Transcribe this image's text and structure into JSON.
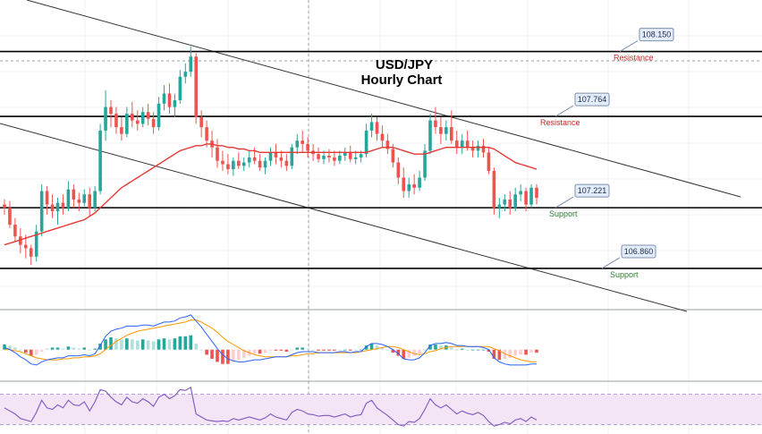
{
  "chart_data": {
    "type": "candlestick",
    "title": [
      "USD/JPY",
      "Hourly Chart"
    ],
    "ylim": [
      106.7,
      108.35
    ],
    "colors": {
      "up": "#26a69a",
      "down": "#ef5350",
      "ma": "#e53935",
      "levels": "#000000",
      "channel": "#333333",
      "resistance_text": "#c62828",
      "support_text": "#2e7d32",
      "callout_fill": "#e3ecfa",
      "callout_stroke": "#7f8fb0",
      "macd": "#2962ff",
      "signal": "#ff9800",
      "rsi": "#7e57c2",
      "rsi_band": "#f3e5f5"
    },
    "levels": [
      {
        "value": 108.15,
        "label": "108.150",
        "role": "Resistance"
      },
      {
        "value": 107.764,
        "label": "107.764",
        "role": "Resistance"
      },
      {
        "value": 107.221,
        "label": "107.221",
        "role": "Support"
      },
      {
        "value": 106.86,
        "label": "106.860",
        "role": "Support"
      }
    ],
    "candles": [
      [
        107.24,
        107.27,
        107.18,
        107.22
      ],
      [
        107.22,
        107.26,
        107.1,
        107.12
      ],
      [
        107.12,
        107.16,
        107.02,
        107.05
      ],
      [
        107.05,
        107.1,
        106.95,
        107.0
      ],
      [
        107.0,
        107.06,
        106.92,
        106.98
      ],
      [
        106.98,
        107.0,
        106.88,
        106.93
      ],
      [
        106.93,
        107.12,
        106.9,
        107.08
      ],
      [
        107.08,
        107.36,
        107.05,
        107.32
      ],
      [
        107.32,
        107.35,
        107.18,
        107.24
      ],
      [
        107.24,
        107.3,
        107.16,
        107.2
      ],
      [
        107.2,
        107.28,
        107.12,
        107.25
      ],
      [
        107.25,
        107.3,
        107.18,
        107.22
      ],
      [
        107.22,
        107.38,
        107.2,
        107.33
      ],
      [
        107.33,
        107.36,
        107.22,
        107.27
      ],
      [
        107.27,
        107.31,
        107.2,
        107.25
      ],
      [
        107.25,
        107.33,
        107.23,
        107.3
      ],
      [
        107.3,
        107.34,
        107.17,
        107.22
      ],
      [
        107.22,
        107.35,
        107.2,
        107.32
      ],
      [
        107.32,
        107.72,
        107.3,
        107.68
      ],
      [
        107.68,
        107.92,
        107.62,
        107.82
      ],
      [
        107.82,
        107.86,
        107.7,
        107.78
      ],
      [
        107.78,
        107.82,
        107.66,
        107.7
      ],
      [
        107.7,
        107.76,
        107.62,
        107.66
      ],
      [
        107.66,
        107.82,
        107.64,
        107.78
      ],
      [
        107.78,
        107.85,
        107.7,
        107.74
      ],
      [
        107.74,
        107.8,
        107.68,
        107.72
      ],
      [
        107.72,
        107.82,
        107.7,
        107.79
      ],
      [
        107.79,
        107.84,
        107.71,
        107.75
      ],
      [
        107.75,
        107.79,
        107.66,
        107.7
      ],
      [
        107.7,
        107.88,
        107.68,
        107.84
      ],
      [
        107.84,
        107.95,
        107.8,
        107.9
      ],
      [
        107.9,
        107.96,
        107.78,
        107.82
      ],
      [
        107.82,
        107.9,
        107.76,
        107.86
      ],
      [
        107.86,
        108.04,
        107.84,
        108.0
      ],
      [
        108.0,
        108.08,
        107.96,
        108.03
      ],
      [
        108.03,
        108.18,
        108.0,
        108.12
      ],
      [
        108.12,
        108.14,
        107.72,
        107.76
      ],
      [
        107.76,
        107.8,
        107.64,
        107.7
      ],
      [
        107.7,
        107.74,
        107.58,
        107.62
      ],
      [
        107.62,
        107.68,
        107.52,
        107.58
      ],
      [
        107.58,
        107.63,
        107.46,
        107.5
      ],
      [
        107.5,
        107.56,
        107.44,
        107.48
      ],
      [
        107.48,
        107.54,
        107.42,
        107.45
      ],
      [
        107.45,
        107.52,
        107.41,
        107.5
      ],
      [
        107.5,
        107.55,
        107.45,
        107.47
      ],
      [
        107.47,
        107.52,
        107.44,
        107.49
      ],
      [
        107.49,
        107.56,
        107.46,
        107.52
      ],
      [
        107.52,
        107.58,
        107.48,
        107.5
      ],
      [
        107.5,
        107.54,
        107.44,
        107.46
      ],
      [
        107.46,
        107.52,
        107.42,
        107.5
      ],
      [
        107.5,
        107.58,
        107.47,
        107.55
      ],
      [
        107.55,
        107.6,
        107.48,
        107.52
      ],
      [
        107.52,
        107.56,
        107.46,
        107.5
      ],
      [
        107.5,
        107.54,
        107.44,
        107.47
      ],
      [
        107.47,
        107.6,
        107.45,
        107.58
      ],
      [
        107.58,
        107.66,
        107.54,
        107.62
      ],
      [
        107.62,
        107.68,
        107.55,
        107.6
      ],
      [
        107.6,
        107.64,
        107.52,
        107.56
      ],
      [
        107.56,
        107.6,
        107.5,
        107.54
      ],
      [
        107.54,
        107.58,
        107.49,
        107.51
      ],
      [
        107.51,
        107.56,
        107.48,
        107.53
      ],
      [
        107.53,
        107.57,
        107.49,
        107.52
      ],
      [
        107.52,
        107.56,
        107.47,
        107.5
      ],
      [
        107.5,
        107.56,
        107.48,
        107.53
      ],
      [
        107.53,
        107.58,
        107.5,
        107.55
      ],
      [
        107.55,
        107.59,
        107.49,
        107.51
      ],
      [
        107.51,
        107.56,
        107.48,
        107.52
      ],
      [
        107.52,
        107.56,
        107.49,
        107.54
      ],
      [
        107.54,
        107.72,
        107.52,
        107.68
      ],
      [
        107.68,
        107.78,
        107.64,
        107.73
      ],
      [
        107.73,
        107.76,
        107.62,
        107.66
      ],
      [
        107.66,
        107.71,
        107.58,
        107.62
      ],
      [
        107.62,
        107.66,
        107.54,
        107.57
      ],
      [
        107.57,
        107.6,
        107.46,
        107.49
      ],
      [
        107.49,
        107.52,
        107.36,
        107.4
      ],
      [
        107.4,
        107.46,
        107.28,
        107.32
      ],
      [
        107.32,
        107.4,
        107.28,
        107.36
      ],
      [
        107.36,
        107.42,
        107.3,
        107.34
      ],
      [
        107.34,
        107.44,
        107.32,
        107.4
      ],
      [
        107.4,
        107.6,
        107.38,
        107.56
      ],
      [
        107.56,
        107.78,
        107.54,
        107.74
      ],
      [
        107.74,
        107.82,
        107.66,
        107.7
      ],
      [
        107.7,
        107.76,
        107.6,
        107.66
      ],
      [
        107.66,
        107.74,
        107.62,
        107.7
      ],
      [
        107.7,
        107.8,
        107.6,
        107.62
      ],
      [
        107.62,
        107.68,
        107.54,
        107.58
      ],
      [
        107.58,
        107.66,
        107.54,
        107.62
      ],
      [
        107.62,
        107.68,
        107.56,
        107.58
      ],
      [
        107.58,
        107.62,
        107.52,
        107.56
      ],
      [
        107.56,
        107.62,
        107.52,
        107.59
      ],
      [
        107.59,
        107.63,
        107.52,
        107.55
      ],
      [
        107.55,
        107.58,
        107.42,
        107.44
      ],
      [
        107.44,
        107.46,
        107.18,
        107.22
      ],
      [
        107.22,
        107.28,
        107.16,
        107.24
      ],
      [
        107.24,
        107.3,
        107.2,
        107.27
      ],
      [
        107.27,
        107.32,
        107.18,
        107.22
      ],
      [
        107.22,
        107.34,
        107.2,
        107.3
      ],
      [
        107.3,
        107.36,
        107.26,
        107.32
      ],
      [
        107.32,
        107.34,
        107.2,
        107.24
      ],
      [
        107.24,
        107.36,
        107.22,
        107.34
      ],
      [
        107.34,
        107.36,
        107.24,
        107.28
      ]
    ],
    "ma": {
      "start_index": 0,
      "values": [
        107.0,
        107.01,
        107.02,
        107.03,
        107.04,
        107.05,
        107.06,
        107.07,
        107.08,
        107.09,
        107.1,
        107.11,
        107.12,
        107.13,
        107.14,
        107.15,
        107.17,
        107.19,
        107.22,
        107.25,
        107.28,
        107.31,
        107.34,
        107.36,
        107.38,
        107.4,
        107.42,
        107.44,
        107.46,
        107.48,
        107.5,
        107.52,
        107.54,
        107.56,
        107.57,
        107.58,
        107.59,
        107.59,
        107.6,
        107.6,
        107.59,
        107.59,
        107.58,
        107.58,
        107.57,
        107.57,
        107.56,
        107.56,
        107.55,
        107.55,
        107.55,
        107.55,
        107.55,
        107.55,
        107.55,
        107.55,
        107.55,
        107.55,
        107.55,
        107.55,
        107.55,
        107.55,
        107.55,
        107.55,
        107.55,
        107.55,
        107.55,
        107.55,
        107.55,
        107.56,
        107.57,
        107.58,
        107.58,
        107.58,
        107.57,
        107.56,
        107.55,
        107.54,
        107.54,
        107.54,
        107.55,
        107.56,
        107.57,
        107.58,
        107.58,
        107.58,
        107.58,
        107.58,
        107.58,
        107.58,
        107.58,
        107.58,
        107.57,
        107.55,
        107.53,
        107.51,
        107.49,
        107.48,
        107.47,
        107.46,
        107.45
      ]
    },
    "macd": {
      "range": [
        -0.3,
        0.4
      ],
      "hist": [
        0.05,
        0.04,
        0.02,
        0.0,
        -0.03,
        -0.06,
        -0.05,
        -0.02,
        0.01,
        0.02,
        0.02,
        0.01,
        0.03,
        0.02,
        0.01,
        0.02,
        0.0,
        0.01,
        0.06,
        0.1,
        0.12,
        0.11,
        0.1,
        0.11,
        0.1,
        0.09,
        0.1,
        0.09,
        0.08,
        0.1,
        0.11,
        0.1,
        0.11,
        0.13,
        0.13,
        0.14,
        0.06,
        0.0,
        -0.05,
        -0.09,
        -0.12,
        -0.14,
        -0.14,
        -0.12,
        -0.1,
        -0.08,
        -0.06,
        -0.04,
        -0.04,
        -0.03,
        -0.01,
        -0.01,
        -0.01,
        -0.02,
        0.0,
        0.02,
        0.02,
        0.01,
        0.0,
        -0.01,
        -0.01,
        -0.01,
        -0.01,
        0.0,
        0.0,
        -0.01,
        0.0,
        0.0,
        0.04,
        0.06,
        0.04,
        0.02,
        0.0,
        -0.03,
        -0.06,
        -0.09,
        -0.08,
        -0.06,
        -0.04,
        0.0,
        0.05,
        0.05,
        0.04,
        0.04,
        0.02,
        0.0,
        0.01,
        0.0,
        0.0,
        0.0,
        0.0,
        -0.02,
        -0.09,
        -0.1,
        -0.09,
        -0.08,
        -0.06,
        -0.05,
        -0.05,
        -0.03,
        -0.03
      ],
      "macd": [
        0.02,
        0.0,
        -0.03,
        -0.07,
        -0.1,
        -0.14,
        -0.15,
        -0.12,
        -0.1,
        -0.09,
        -0.08,
        -0.08,
        -0.06,
        -0.06,
        -0.06,
        -0.05,
        -0.06,
        -0.04,
        0.04,
        0.13,
        0.18,
        0.2,
        0.21,
        0.23,
        0.23,
        0.23,
        0.24,
        0.24,
        0.23,
        0.25,
        0.27,
        0.27,
        0.28,
        0.31,
        0.32,
        0.34,
        0.28,
        0.22,
        0.15,
        0.08,
        0.01,
        -0.05,
        -0.09,
        -0.11,
        -0.12,
        -0.12,
        -0.11,
        -0.1,
        -0.1,
        -0.09,
        -0.08,
        -0.07,
        -0.07,
        -0.07,
        -0.05,
        -0.03,
        -0.02,
        -0.02,
        -0.02,
        -0.03,
        -0.03,
        -0.03,
        -0.03,
        -0.02,
        -0.02,
        -0.03,
        -0.02,
        -0.02,
        0.03,
        0.06,
        0.06,
        0.05,
        0.03,
        0.0,
        -0.04,
        -0.09,
        -0.1,
        -0.1,
        -0.08,
        -0.03,
        0.04,
        0.06,
        0.06,
        0.07,
        0.06,
        0.04,
        0.04,
        0.03,
        0.03,
        0.03,
        0.02,
        0.0,
        -0.08,
        -0.12,
        -0.14,
        -0.15,
        -0.15,
        -0.15,
        -0.15,
        -0.14,
        -0.14
      ],
      "signal": [
        0.0,
        0.0,
        -0.01,
        -0.02,
        -0.04,
        -0.06,
        -0.08,
        -0.09,
        -0.1,
        -0.1,
        -0.1,
        -0.09,
        -0.09,
        -0.08,
        -0.08,
        -0.07,
        -0.07,
        -0.06,
        -0.04,
        0.0,
        0.04,
        0.08,
        0.11,
        0.14,
        0.16,
        0.18,
        0.19,
        0.2,
        0.21,
        0.22,
        0.23,
        0.24,
        0.25,
        0.26,
        0.27,
        0.29,
        0.29,
        0.27,
        0.24,
        0.21,
        0.17,
        0.12,
        0.08,
        0.05,
        0.02,
        -0.01,
        -0.03,
        -0.05,
        -0.06,
        -0.07,
        -0.07,
        -0.07,
        -0.07,
        -0.07,
        -0.06,
        -0.06,
        -0.05,
        -0.04,
        -0.04,
        -0.03,
        -0.03,
        -0.03,
        -0.03,
        -0.03,
        -0.03,
        -0.03,
        -0.03,
        -0.02,
        -0.01,
        0.0,
        0.01,
        0.02,
        0.03,
        0.03,
        0.02,
        0.0,
        -0.02,
        -0.04,
        -0.05,
        -0.04,
        -0.02,
        -0.01,
        0.01,
        0.02,
        0.03,
        0.03,
        0.03,
        0.03,
        0.03,
        0.03,
        0.03,
        0.03,
        0.01,
        -0.01,
        -0.04,
        -0.06,
        -0.08,
        -0.1,
        -0.11,
        -0.12,
        -0.12
      ]
    },
    "rsi": {
      "range": [
        20,
        80
      ],
      "band": [
        30,
        70
      ],
      "values": [
        52,
        48,
        44,
        38,
        36,
        34,
        46,
        62,
        52,
        50,
        56,
        52,
        62,
        56,
        55,
        60,
        48,
        60,
        76,
        74,
        66,
        60,
        56,
        66,
        60,
        58,
        64,
        60,
        54,
        66,
        70,
        64,
        68,
        76,
        75,
        79,
        44,
        40,
        36,
        35,
        34,
        35,
        34,
        38,
        36,
        38,
        40,
        38,
        36,
        39,
        44,
        40,
        38,
        36,
        46,
        50,
        48,
        44,
        43,
        41,
        42,
        42,
        40,
        42,
        44,
        40,
        42,
        43,
        58,
        62,
        52,
        47,
        42,
        36,
        30,
        28,
        34,
        33,
        38,
        50,
        64,
        56,
        52,
        56,
        50,
        44,
        48,
        45,
        43,
        46,
        42,
        34,
        28,
        30,
        33,
        31,
        36,
        38,
        34,
        40,
        36
      ]
    }
  }
}
